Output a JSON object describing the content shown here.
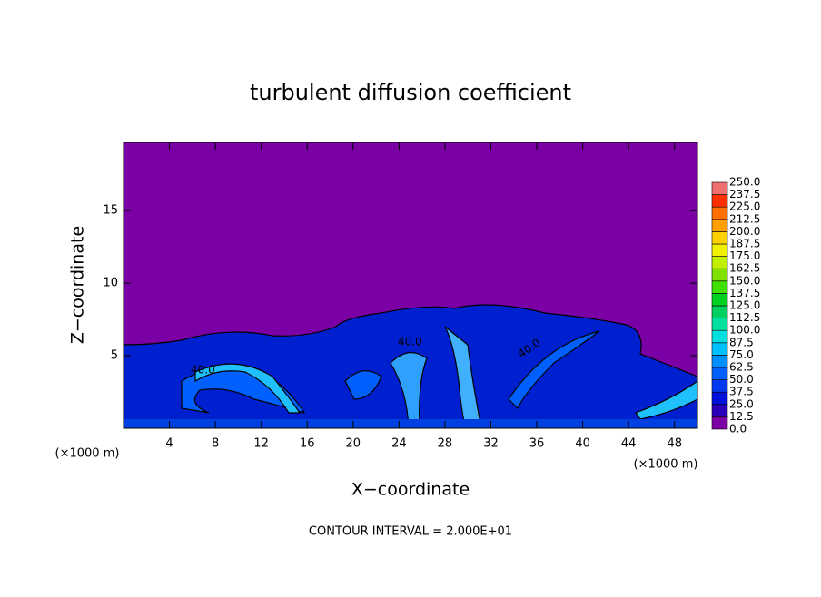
{
  "chart_data": {
    "type": "contour",
    "title": "turbulent diffusion coefficient",
    "xlabel": "X−coordinate",
    "ylabel": "Z−coordinate",
    "unit_label": "(×1000 m)",
    "annotation": "CONTOUR INTERVAL = 2.000E+01",
    "xlim": [
      0,
      50
    ],
    "xticks": [
      4,
      8,
      12,
      16,
      20,
      24,
      28,
      32,
      36,
      40,
      44,
      48
    ],
    "ylim": [
      0,
      19.7
    ],
    "yticks": [
      5,
      10,
      15
    ],
    "contour_labels": [
      {
        "value": 40,
        "label": "40.0"
      },
      {
        "value": 40,
        "label": "40.0"
      },
      {
        "value": 40,
        "label": "40.0"
      }
    ],
    "colorbar": {
      "levels": [
        {
          "value": 0,
          "label": "0.0"
        },
        {
          "value": 12.5,
          "label": "12.5"
        },
        {
          "value": 25,
          "label": "25.0"
        },
        {
          "value": 37.5,
          "label": "37.5"
        },
        {
          "value": 50,
          "label": "50.0"
        },
        {
          "value": 62.5,
          "label": "62.5"
        },
        {
          "value": 75,
          "label": "75.0"
        },
        {
          "value": 87.5,
          "label": "87.5"
        },
        {
          "value": 100,
          "label": "100.0"
        },
        {
          "value": 112.5,
          "label": "112.5"
        },
        {
          "value": 125,
          "label": "125.0"
        },
        {
          "value": 137.5,
          "label": "137.5"
        },
        {
          "value": 150,
          "label": "150.0"
        },
        {
          "value": 162.5,
          "label": "162.5"
        },
        {
          "value": 175,
          "label": "175.0"
        },
        {
          "value": 187.5,
          "label": "187.5"
        },
        {
          "value": 200,
          "label": "200.0"
        },
        {
          "value": 212.5,
          "label": "212.5"
        },
        {
          "value": 225,
          "label": "225.0"
        },
        {
          "value": 237.5,
          "label": "237.5"
        },
        {
          "value": 250,
          "label": "250.0"
        }
      ],
      "colors": [
        "#7a00a6",
        "#2a00b8",
        "#0010d8",
        "#0038f0",
        "#0060ff",
        "#0090ff",
        "#00c0ff",
        "#00e0e0",
        "#00e0a0",
        "#00d060",
        "#00d020",
        "#40e000",
        "#80e000",
        "#c0f000",
        "#f0f000",
        "#ffd000",
        "#ffa000",
        "#ff7000",
        "#ff3000",
        "#f07070"
      ]
    }
  }
}
